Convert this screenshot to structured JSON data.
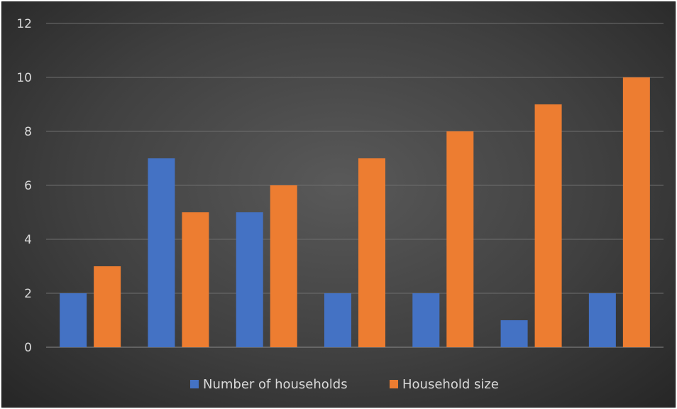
{
  "chart_data": {
    "type": "bar",
    "title": "",
    "xlabel": "",
    "ylabel": "",
    "ylim": [
      0,
      12
    ],
    "yticks": [
      0,
      2,
      4,
      6,
      8,
      10,
      12
    ],
    "grid": true,
    "legend_position": "bottom",
    "categories": [
      "",
      "",
      "",
      "",
      "",
      "",
      ""
    ],
    "series": [
      {
        "name": "Number of households",
        "color": "#4472c4",
        "values": [
          2,
          7,
          5,
          2,
          2,
          1,
          2
        ]
      },
      {
        "name": "Household size",
        "color": "#ed7d31",
        "values": [
          3,
          5,
          6,
          7,
          8,
          9,
          10
        ]
      }
    ]
  }
}
